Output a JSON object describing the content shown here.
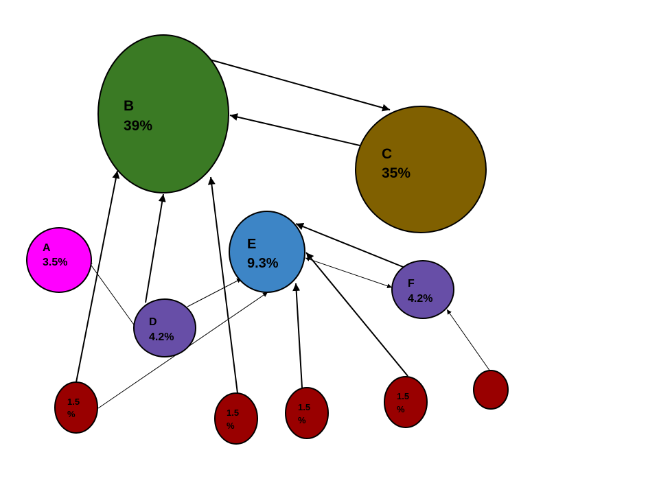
{
  "colors": {
    "green": "#3a7a24",
    "brown": "#806000",
    "magenta": "#ff00ff",
    "blue": "#3d85c6",
    "purple": "#674ea7",
    "darkred": "#990000",
    "stroke": "#000000"
  },
  "nodes": {
    "b": {
      "name": "B",
      "value": "39%"
    },
    "c": {
      "name": "C",
      "value": "35%"
    },
    "a": {
      "name": "A",
      "value": "3.5%"
    },
    "e": {
      "name": "E",
      "value": "9.3%"
    },
    "d": {
      "name": "D",
      "value": "4.2%"
    },
    "f": {
      "name": "F",
      "value": "4.2%"
    },
    "s1": {
      "line1": "1.5",
      "line2": "%"
    },
    "s2": {
      "line1": "1.5",
      "line2": "%"
    },
    "s3": {
      "line1": "1.5",
      "line2": "%"
    },
    "s4": {
      "line1": "1.5",
      "line2": "%"
    },
    "s5": {
      "line1": "",
      "line2": ""
    }
  },
  "edges": [
    {
      "from": "b",
      "to": "c"
    },
    {
      "from": "c",
      "to": "b"
    },
    {
      "from": "d",
      "to": "b"
    },
    {
      "from": "d",
      "to": "a"
    },
    {
      "from": "d",
      "to": "e"
    },
    {
      "from": "s1",
      "to": "b"
    },
    {
      "from": "s1",
      "to": "e"
    },
    {
      "from": "s2",
      "to": "b"
    },
    {
      "from": "s3",
      "to": "e"
    },
    {
      "from": "s4",
      "to": "e"
    },
    {
      "from": "f",
      "to": "e"
    },
    {
      "from": "e",
      "to": "f"
    },
    {
      "from": "s5",
      "to": "f"
    }
  ]
}
